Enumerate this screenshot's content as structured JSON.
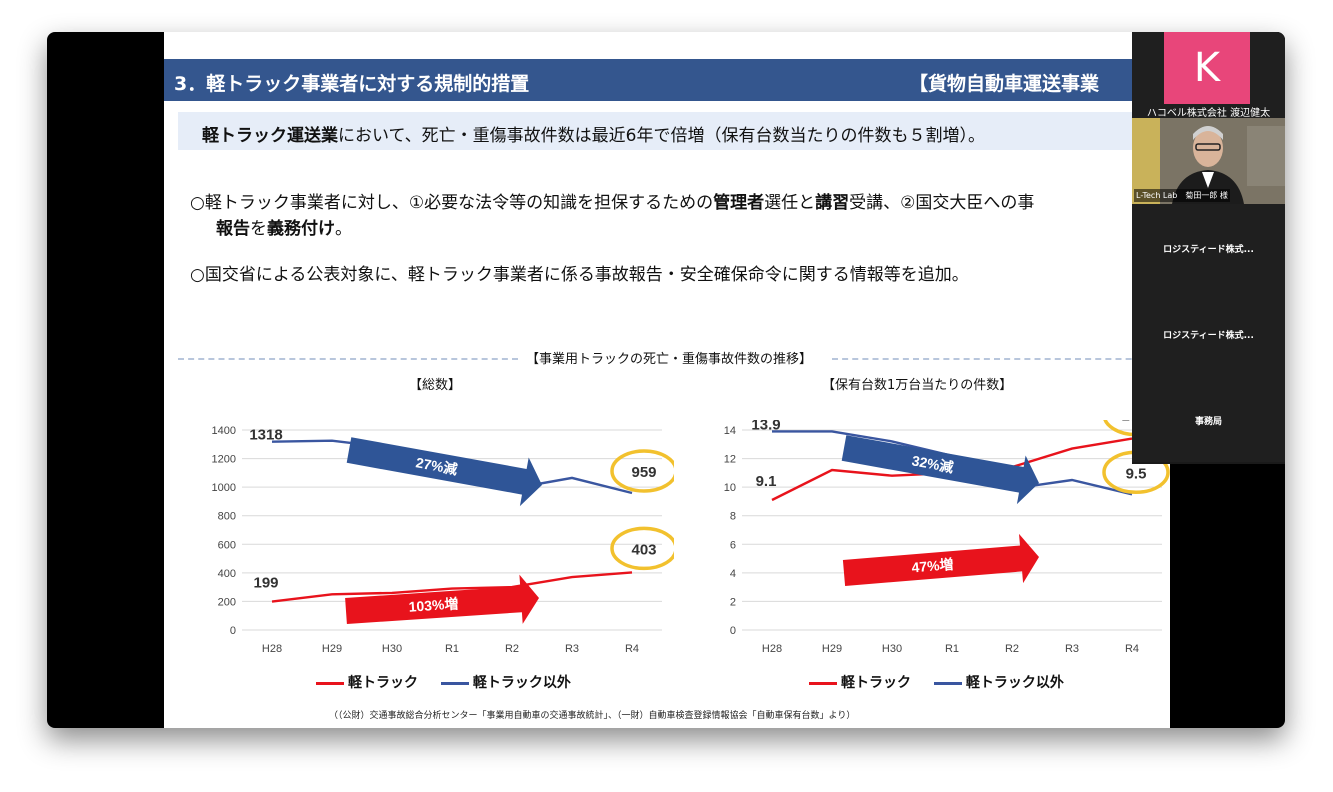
{
  "slide": {
    "title_left": "3．軽トラック事業者に対する規制的措置",
    "title_right": "【貨物自動車運送事業",
    "summary_bold": "軽トラック運送業",
    "summary_rest": "において、死亡・重傷事故件数は最近6年で倍増（保有台数当たりの件数も５割増）。",
    "bullet1_line1_a": "○軽トラック事業者に対し、①必要な法令等の知識を担保するための",
    "bullet1_line1_b": "管理者",
    "bullet1_line1_c": "選任と",
    "bullet1_line1_d": "講習",
    "bullet1_line1_e": "受講、②国交大臣への事",
    "bullet1_line2_a": "報告",
    "bullet1_line2_b": "を",
    "bullet1_line2_c": "義務付け",
    "bullet1_line2_d": "。",
    "bullet2": "○国交省による公表対象に、軽トラック事業者に係る事故報告・安全確保命令に関する情報等を追加。",
    "section_title": "【事業用トラックの死亡・重傷事故件数の推移】",
    "left_subtitle": "【総数】",
    "right_subtitle": "【保有台数1万台当たりの件数】",
    "legend_red": "軽トラック",
    "legend_blue": "軽トラック以外",
    "source": "（（公財）交通事故総合分析センター「事業用自動車の交通事故統計」、（一財）自動車検査登録情報協会「自動車保有台数」より）"
  },
  "chart_data": [
    {
      "type": "line",
      "title": "【総数】",
      "categories": [
        "H28",
        "H29",
        "H30",
        "R1",
        "R2",
        "R3",
        "R4"
      ],
      "yticks": [
        "0",
        "200",
        "400",
        "600",
        "800",
        "1000",
        "1200",
        "1400"
      ],
      "ylim": [
        0,
        1400
      ],
      "series": [
        {
          "name": "軽トラック",
          "color": "#e8131c",
          "values": [
            199,
            250,
            260,
            290,
            300,
            370,
            403
          ]
        },
        {
          "name": "軽トラック以外",
          "color": "#3a56a0",
          "values": [
            1318,
            1325,
            1275,
            1200,
            990,
            1065,
            959
          ]
        }
      ],
      "annotations": {
        "blue_start": "1318",
        "blue_end": "959",
        "red_start": "199",
        "red_end": "403",
        "blue_arrow": "27%減",
        "red_arrow": "103%増"
      }
    },
    {
      "type": "line",
      "title": "【保有台数1万台当たりの件数】",
      "categories": [
        "H28",
        "H29",
        "H30",
        "R1",
        "R2",
        "R3",
        "R4"
      ],
      "yticks": [
        "0",
        "2",
        "4",
        "6",
        "8",
        "10",
        "12",
        "14"
      ],
      "ylim": [
        0,
        14
      ],
      "series": [
        {
          "name": "軽トラック",
          "color": "#e8131c",
          "values": [
            9.1,
            11.2,
            10.8,
            11.0,
            11.4,
            12.7,
            13.4
          ]
        },
        {
          "name": "軽トラック以外",
          "color": "#3a56a0",
          "values": [
            13.9,
            13.9,
            13.2,
            12.2,
            9.9,
            10.5,
            9.5
          ]
        }
      ],
      "annotations": {
        "blue_start": "13.9",
        "blue_end": "9.5",
        "red_start": "9.1",
        "red_end": "13.4",
        "blue_arrow": "32%減",
        "red_arrow": "47%増"
      }
    }
  ],
  "participants": [
    {
      "initial": "K",
      "name": "ハコベル株式会社 渡辺健太"
    },
    {
      "name": "L-Tech Lab　菊田一郎 様"
    },
    {
      "name": "ロジスティード株式..."
    },
    {
      "name": "ロジスティード株式..."
    },
    {
      "name": "事務局"
    }
  ],
  "colors": {
    "title_bar": "#34568e",
    "summary_bg": "#e6edf8",
    "red": "#e8131c",
    "blue_line": "#3a56a0",
    "blue_arrow": "#2f5597",
    "highlight": "#f2c12e",
    "avatar": "#e8467a"
  }
}
